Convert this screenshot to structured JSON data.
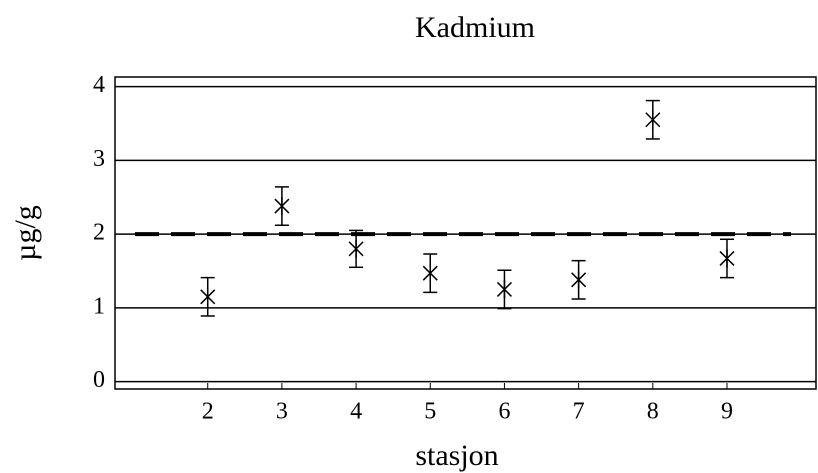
{
  "chart_data": {
    "type": "scatter",
    "title": "Kadmium",
    "x_label": "stasjon",
    "y_label": "µg/g",
    "x": [
      2,
      3,
      4,
      5,
      6,
      7,
      8,
      9
    ],
    "values": [
      1.15,
      2.38,
      1.8,
      1.47,
      1.25,
      1.38,
      3.55,
      1.67
    ],
    "errors": [
      0.26,
      0.26,
      0.25,
      0.26,
      0.26,
      0.26,
      0.26,
      0.26
    ],
    "color": "#000000",
    "xlim": [
      0.75,
      10.2
    ],
    "ylim": [
      -0.1,
      4.13
    ],
    "xticks": [
      2,
      3,
      4,
      5,
      6,
      7,
      8,
      9
    ],
    "yticks": [
      0,
      1,
      2,
      3,
      4
    ],
    "grid": true,
    "reference_line": 2
  }
}
